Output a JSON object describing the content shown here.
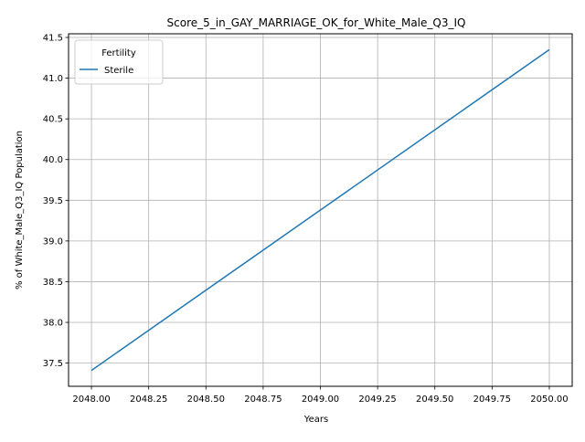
{
  "chart_data": {
    "type": "line",
    "title": "Score_5_in_GAY_MARRIAGE_OK_for_White_Male_Q3_IQ",
    "xlabel": "Years",
    "ylabel": "% of White_Male_Q3_IQ Population",
    "x": [
      2048.0,
      2050.0
    ],
    "xlim": [
      2047.9,
      2050.1
    ],
    "ylim": [
      37.215,
      41.545
    ],
    "xticks": [
      2048.0,
      2048.25,
      2048.5,
      2048.75,
      2049.0,
      2049.25,
      2049.5,
      2049.75,
      2050.0
    ],
    "xtick_labels": [
      "2048.00",
      "2048.25",
      "2048.50",
      "2048.75",
      "2049.00",
      "2049.25",
      "2049.50",
      "2049.75",
      "2050.00"
    ],
    "yticks": [
      37.5,
      38.0,
      38.5,
      39.0,
      39.5,
      40.0,
      40.5,
      41.0,
      41.5
    ],
    "ytick_labels": [
      "37.5",
      "38.0",
      "38.5",
      "39.0",
      "39.5",
      "40.0",
      "40.5",
      "41.0",
      "41.5"
    ],
    "grid": true,
    "legend": {
      "title": "Fertility",
      "placement": "top-left"
    },
    "series": [
      {
        "name": "Sterile",
        "color": "#1f77b4",
        "values": [
          37.41,
          41.35
        ]
      }
    ]
  }
}
